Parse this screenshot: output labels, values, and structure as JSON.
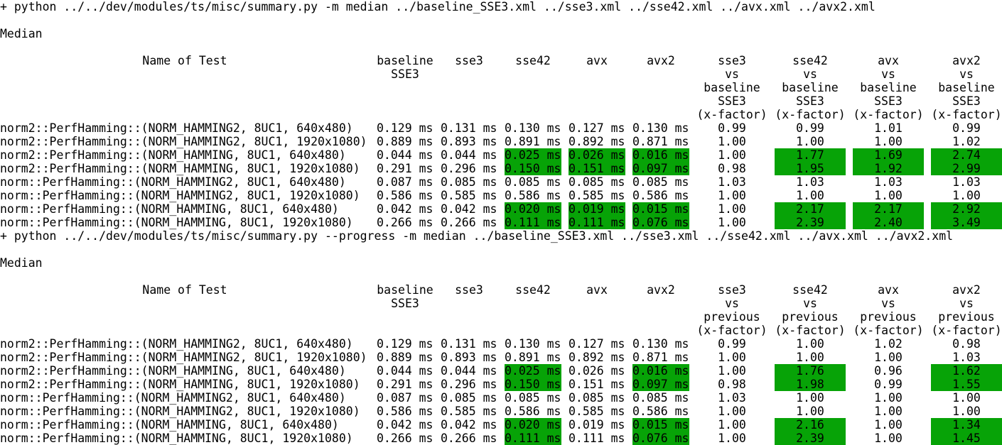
{
  "blocks": [
    {
      "command": "+ python ../../dev/modules/ts/misc/summary.py -m median ../baseline_SSE3.xml ../sse3.xml ../sse42.xml ../avx.xml ../avx2.xml",
      "title": "Median",
      "headers": [
        [
          "Name of Test"
        ],
        [
          "baseline",
          "SSE3"
        ],
        [
          "sse3"
        ],
        [
          "sse42"
        ],
        [
          "avx"
        ],
        [
          "avx2"
        ],
        [
          "sse3",
          "vs",
          "baseline",
          "SSE3",
          "(x-factor)"
        ],
        [
          "sse42",
          "vs",
          "baseline",
          "SSE3",
          "(x-factor)"
        ],
        [
          "avx",
          "vs",
          "baseline",
          "SSE3",
          "(x-factor)"
        ],
        [
          "avx2",
          "vs",
          "baseline",
          "SSE3",
          "(x-factor)"
        ]
      ],
      "rows": [
        {
          "name": "norm2::PerfHamming::(NORM_HAMMING2, 8UC1, 640x480)",
          "cells": [
            "0.129 ms",
            "0.131 ms",
            "0.130 ms",
            "0.127 ms",
            "0.130 ms",
            "0.99",
            "0.99",
            "1.01",
            "0.99"
          ],
          "highlight": [
            false,
            false,
            false,
            false,
            false,
            false,
            false,
            false,
            false
          ]
        },
        {
          "name": "norm2::PerfHamming::(NORM_HAMMING2, 8UC1, 1920x1080)",
          "cells": [
            "0.889 ms",
            "0.893 ms",
            "0.891 ms",
            "0.892 ms",
            "0.871 ms",
            "1.00",
            "1.00",
            "1.00",
            "1.02"
          ],
          "highlight": [
            false,
            false,
            false,
            false,
            false,
            false,
            false,
            false,
            false
          ]
        },
        {
          "name": "norm2::PerfHamming::(NORM_HAMMING, 8UC1, 640x480)",
          "cells": [
            "0.044 ms",
            "0.044 ms",
            "0.025 ms",
            "0.026 ms",
            "0.016 ms",
            "1.00",
            "1.77",
            "1.69",
            "2.74"
          ],
          "highlight": [
            false,
            false,
            true,
            true,
            true,
            false,
            true,
            true,
            true
          ]
        },
        {
          "name": "norm2::PerfHamming::(NORM_HAMMING, 8UC1, 1920x1080)",
          "cells": [
            "0.291 ms",
            "0.296 ms",
            "0.150 ms",
            "0.151 ms",
            "0.097 ms",
            "0.98",
            "1.95",
            "1.92",
            "2.99"
          ],
          "highlight": [
            false,
            false,
            true,
            true,
            true,
            false,
            true,
            true,
            true
          ]
        },
        {
          "name": "norm::PerfHamming::(NORM_HAMMING2, 8UC1, 640x480)",
          "cells": [
            "0.087 ms",
            "0.085 ms",
            "0.085 ms",
            "0.085 ms",
            "0.085 ms",
            "1.03",
            "1.03",
            "1.03",
            "1.03"
          ],
          "highlight": [
            false,
            false,
            false,
            false,
            false,
            false,
            false,
            false,
            false
          ]
        },
        {
          "name": "norm::PerfHamming::(NORM_HAMMING2, 8UC1, 1920x1080)",
          "cells": [
            "0.586 ms",
            "0.585 ms",
            "0.586 ms",
            "0.585 ms",
            "0.586 ms",
            "1.00",
            "1.00",
            "1.00",
            "1.00"
          ],
          "highlight": [
            false,
            false,
            false,
            false,
            false,
            false,
            false,
            false,
            false
          ]
        },
        {
          "name": "norm::PerfHamming::(NORM_HAMMING, 8UC1, 640x480)",
          "cells": [
            "0.042 ms",
            "0.042 ms",
            "0.020 ms",
            "0.019 ms",
            "0.015 ms",
            "1.00",
            "2.17",
            "2.17",
            "2.92"
          ],
          "highlight": [
            false,
            false,
            true,
            true,
            true,
            false,
            true,
            true,
            true
          ]
        },
        {
          "name": "norm::PerfHamming::(NORM_HAMMING, 8UC1, 1920x1080)",
          "cells": [
            "0.266 ms",
            "0.266 ms",
            "0.111 ms",
            "0.111 ms",
            "0.076 ms",
            "1.00",
            "2.39",
            "2.40",
            "3.49"
          ],
          "highlight": [
            false,
            false,
            true,
            true,
            true,
            false,
            true,
            true,
            true
          ]
        }
      ]
    },
    {
      "command": "+ python ../../dev/modules/ts/misc/summary.py --progress -m median ../baseline_SSE3.xml ../sse3.xml ../sse42.xml ../avx.xml ../avx2.xml",
      "title": "Median",
      "headers": [
        [
          "Name of Test"
        ],
        [
          "baseline",
          "SSE3"
        ],
        [
          "sse3"
        ],
        [
          "sse42"
        ],
        [
          "avx"
        ],
        [
          "avx2"
        ],
        [
          "sse3",
          "vs",
          "previous",
          "(x-factor)"
        ],
        [
          "sse42",
          "vs",
          "previous",
          "(x-factor)"
        ],
        [
          "avx",
          "vs",
          "previous",
          "(x-factor)"
        ],
        [
          "avx2",
          "vs",
          "previous",
          "(x-factor)"
        ]
      ],
      "rows": [
        {
          "name": "norm2::PerfHamming::(NORM_HAMMING2, 8UC1, 640x480)",
          "cells": [
            "0.129 ms",
            "0.131 ms",
            "0.130 ms",
            "0.127 ms",
            "0.130 ms",
            "0.99",
            "1.00",
            "1.02",
            "0.98"
          ],
          "highlight": [
            false,
            false,
            false,
            false,
            false,
            false,
            false,
            false,
            false
          ]
        },
        {
          "name": "norm2::PerfHamming::(NORM_HAMMING2, 8UC1, 1920x1080)",
          "cells": [
            "0.889 ms",
            "0.893 ms",
            "0.891 ms",
            "0.892 ms",
            "0.871 ms",
            "1.00",
            "1.00",
            "1.00",
            "1.03"
          ],
          "highlight": [
            false,
            false,
            false,
            false,
            false,
            false,
            false,
            false,
            false
          ]
        },
        {
          "name": "norm2::PerfHamming::(NORM_HAMMING, 8UC1, 640x480)",
          "cells": [
            "0.044 ms",
            "0.044 ms",
            "0.025 ms",
            "0.026 ms",
            "0.016 ms",
            "1.00",
            "1.76",
            "0.96",
            "1.62"
          ],
          "highlight": [
            false,
            false,
            true,
            false,
            true,
            false,
            true,
            false,
            true
          ]
        },
        {
          "name": "norm2::PerfHamming::(NORM_HAMMING, 8UC1, 1920x1080)",
          "cells": [
            "0.291 ms",
            "0.296 ms",
            "0.150 ms",
            "0.151 ms",
            "0.097 ms",
            "0.98",
            "1.98",
            "0.99",
            "1.55"
          ],
          "highlight": [
            false,
            false,
            true,
            false,
            true,
            false,
            true,
            false,
            true
          ]
        },
        {
          "name": "norm::PerfHamming::(NORM_HAMMING2, 8UC1, 640x480)",
          "cells": [
            "0.087 ms",
            "0.085 ms",
            "0.085 ms",
            "0.085 ms",
            "0.085 ms",
            "1.03",
            "1.00",
            "1.00",
            "1.00"
          ],
          "highlight": [
            false,
            false,
            false,
            false,
            false,
            false,
            false,
            false,
            false
          ]
        },
        {
          "name": "norm::PerfHamming::(NORM_HAMMING2, 8UC1, 1920x1080)",
          "cells": [
            "0.586 ms",
            "0.585 ms",
            "0.586 ms",
            "0.585 ms",
            "0.586 ms",
            "1.00",
            "1.00",
            "1.00",
            "1.00"
          ],
          "highlight": [
            false,
            false,
            false,
            false,
            false,
            false,
            false,
            false,
            false
          ]
        },
        {
          "name": "norm::PerfHamming::(NORM_HAMMING, 8UC1, 640x480)",
          "cells": [
            "0.042 ms",
            "0.042 ms",
            "0.020 ms",
            "0.019 ms",
            "0.015 ms",
            "1.00",
            "2.16",
            "1.00",
            "1.34"
          ],
          "highlight": [
            false,
            false,
            true,
            false,
            true,
            false,
            true,
            false,
            true
          ]
        },
        {
          "name": "norm::PerfHamming::(NORM_HAMMING, 8UC1, 1920x1080)",
          "cells": [
            "0.266 ms",
            "0.266 ms",
            "0.111 ms",
            "0.111 ms",
            "0.076 ms",
            "1.00",
            "2.39",
            "1.00",
            "1.45"
          ],
          "highlight": [
            false,
            false,
            true,
            false,
            true,
            false,
            true,
            false,
            true
          ]
        }
      ]
    }
  ]
}
